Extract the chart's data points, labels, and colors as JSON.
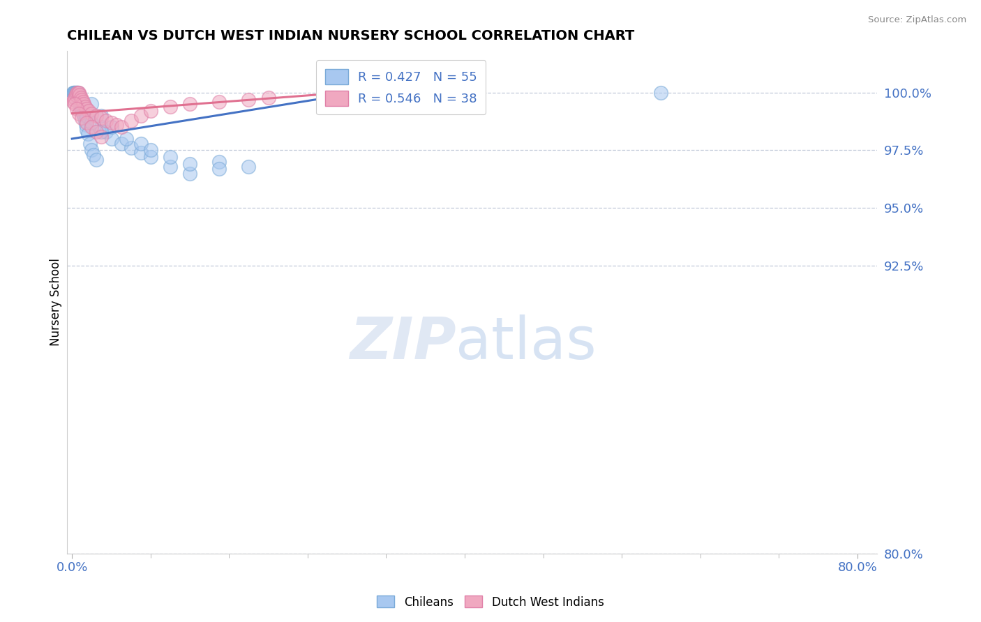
{
  "title": "CHILEAN VS DUTCH WEST INDIAN NURSERY SCHOOL CORRELATION CHART",
  "source": "Source: ZipAtlas.com",
  "ylabel": "Nursery School",
  "ymin": 80.0,
  "ymax": 101.8,
  "xmin": -0.5,
  "xmax": 82.0,
  "legend_r1": "R = 0.427   N = 55",
  "legend_r2": "R = 0.546   N = 38",
  "blue_color": "#a8c8f0",
  "pink_color": "#f0a8c0",
  "blue_edge_color": "#7aaad8",
  "pink_edge_color": "#e080a8",
  "blue_line_color": "#4472c4",
  "pink_line_color": "#e07090",
  "ytick_vals": [
    100.0,
    97.5,
    95.0,
    92.5,
    80.0
  ],
  "blue_scatter_x": [
    0.1,
    0.15,
    0.2,
    0.25,
    0.3,
    0.35,
    0.4,
    0.45,
    0.5,
    0.55,
    0.6,
    0.65,
    0.7,
    0.75,
    0.8,
    0.85,
    0.9,
    1.0,
    1.1,
    1.2,
    1.3,
    1.4,
    1.5,
    1.6,
    1.8,
    2.0,
    2.2,
    2.5,
    3.0,
    3.5,
    4.0,
    5.0,
    6.0,
    7.0,
    8.0,
    10.0,
    12.0,
    15.0,
    18.0,
    2.0,
    3.0,
    4.0,
    5.5,
    7.0,
    8.0,
    10.0,
    12.0,
    15.0,
    0.5,
    0.7,
    1.0,
    1.5,
    2.0,
    3.0,
    60.0
  ],
  "blue_scatter_y": [
    100.0,
    100.0,
    100.0,
    100.0,
    100.0,
    100.0,
    100.0,
    100.0,
    100.0,
    100.0,
    100.0,
    99.8,
    99.7,
    99.6,
    99.5,
    99.4,
    99.3,
    99.2,
    99.1,
    99.0,
    98.8,
    98.6,
    98.4,
    98.2,
    97.8,
    97.5,
    97.3,
    97.1,
    98.5,
    98.3,
    98.0,
    97.8,
    97.6,
    97.4,
    97.2,
    96.8,
    96.5,
    97.0,
    96.8,
    99.5,
    99.0,
    98.5,
    98.0,
    97.8,
    97.5,
    97.2,
    96.9,
    96.7,
    99.8,
    99.6,
    99.3,
    99.0,
    98.7,
    98.3,
    100.0
  ],
  "pink_scatter_x": [
    0.1,
    0.2,
    0.3,
    0.4,
    0.5,
    0.6,
    0.7,
    0.8,
    0.9,
    1.0,
    1.1,
    1.2,
    1.3,
    1.5,
    1.7,
    2.0,
    2.5,
    3.0,
    3.5,
    4.0,
    4.5,
    5.0,
    6.0,
    7.0,
    8.0,
    10.0,
    12.0,
    15.0,
    18.0,
    20.0,
    0.3,
    0.5,
    0.7,
    1.0,
    1.5,
    2.0,
    2.5,
    3.0
  ],
  "pink_scatter_y": [
    99.6,
    99.7,
    99.8,
    99.9,
    100.0,
    100.0,
    100.0,
    99.9,
    99.8,
    99.7,
    99.6,
    99.5,
    99.4,
    99.3,
    99.2,
    99.1,
    99.0,
    98.9,
    98.8,
    98.7,
    98.6,
    98.5,
    98.8,
    99.0,
    99.2,
    99.4,
    99.5,
    99.6,
    99.7,
    99.8,
    99.5,
    99.3,
    99.1,
    98.9,
    98.7,
    98.5,
    98.3,
    98.1
  ],
  "blue_line_x": [
    0.0,
    35.0
  ],
  "blue_line_y": [
    98.0,
    100.4
  ],
  "pink_line_x": [
    0.0,
    40.0
  ],
  "pink_line_y": [
    99.1,
    100.4
  ]
}
